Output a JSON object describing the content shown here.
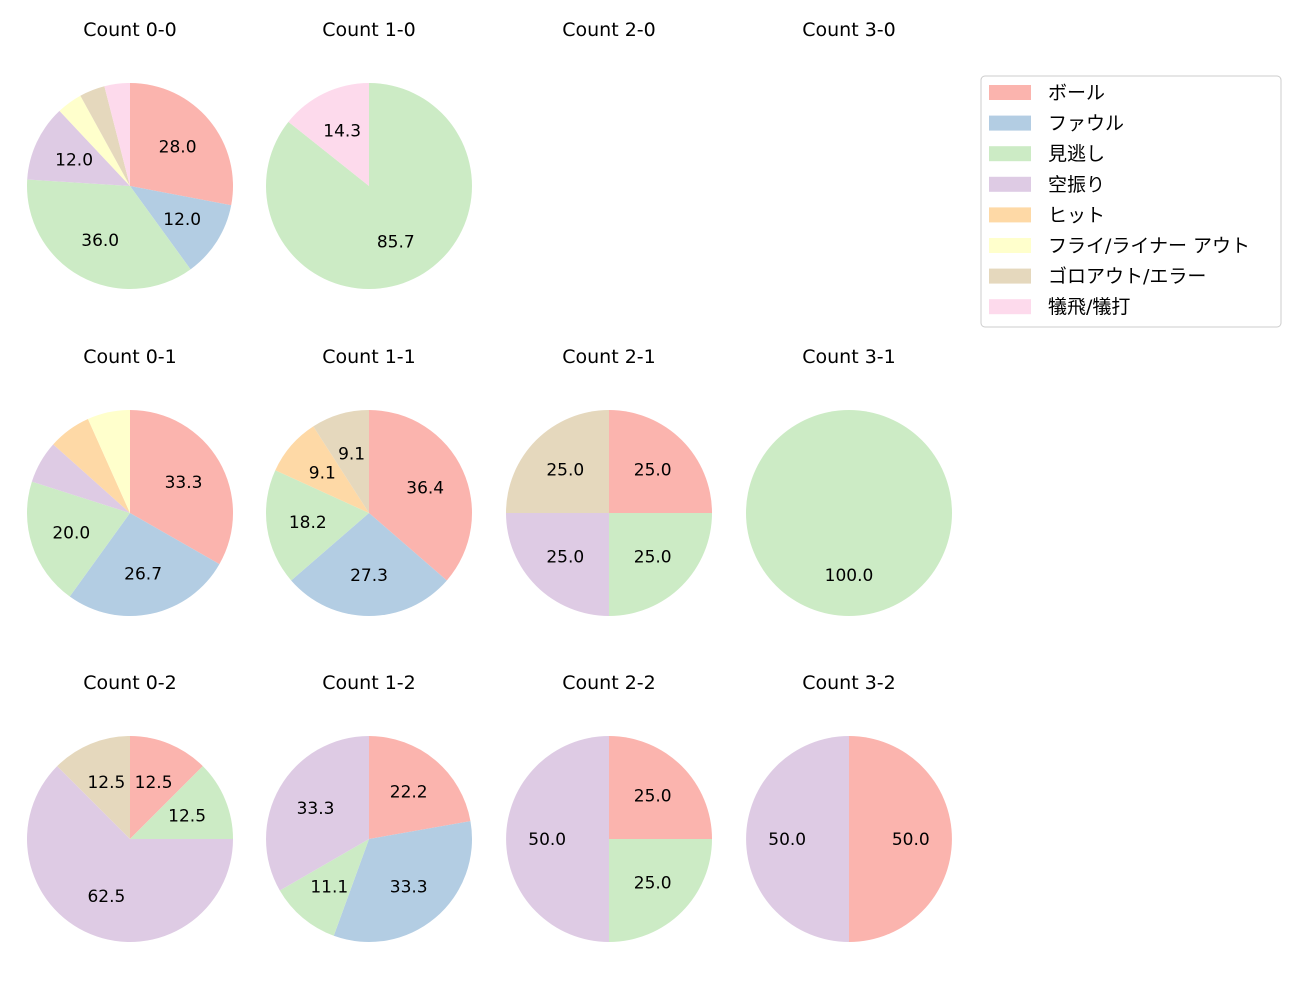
{
  "colors": {
    "ball": "#fbb4ae",
    "foul": "#b3cde3",
    "called": "#ccebc5",
    "swinging": "#decbe4",
    "hit": "#fed9a6",
    "flyout": "#ffffcc",
    "groundout": "#e5d8bd",
    "sacrifice": "#fddaec"
  },
  "chart_data": {
    "type": "pie",
    "legend_position": "top-right",
    "legend": [
      {
        "key": "ball",
        "label": "ボール"
      },
      {
        "key": "foul",
        "label": "ファウル"
      },
      {
        "key": "called",
        "label": "見逃し"
      },
      {
        "key": "swinging",
        "label": "空振り"
      },
      {
        "key": "hit",
        "label": "ヒット"
      },
      {
        "key": "flyout",
        "label": "フライ/ライナー アウト"
      },
      {
        "key": "groundout",
        "label": "ゴロアウト/エラー"
      },
      {
        "key": "sacrifice",
        "label": "犠飛/犠打"
      }
    ],
    "charts": [
      {
        "title": "Count 0-0",
        "slices": [
          {
            "key": "ball",
            "value": 28.0,
            "label": "28.0"
          },
          {
            "key": "foul",
            "value": 12.0,
            "label": "12.0"
          },
          {
            "key": "called",
            "value": 36.0,
            "label": "36.0"
          },
          {
            "key": "swinging",
            "value": 12.0,
            "label": "12.0"
          },
          {
            "key": "flyout",
            "value": 4.0,
            "label": ""
          },
          {
            "key": "groundout",
            "value": 4.0,
            "label": ""
          },
          {
            "key": "sacrifice",
            "value": 4.0,
            "label": ""
          }
        ]
      },
      {
        "title": "Count 1-0",
        "slices": [
          {
            "key": "called",
            "value": 85.7,
            "label": "85.7"
          },
          {
            "key": "sacrifice",
            "value": 14.3,
            "label": "14.3"
          }
        ]
      },
      {
        "title": "Count 2-0",
        "slices": []
      },
      {
        "title": "Count 3-0",
        "slices": []
      },
      {
        "title": "Count 0-1",
        "slices": [
          {
            "key": "ball",
            "value": 33.3,
            "label": "33.3"
          },
          {
            "key": "foul",
            "value": 26.7,
            "label": "26.7"
          },
          {
            "key": "called",
            "value": 20.0,
            "label": "20.0"
          },
          {
            "key": "swinging",
            "value": 6.7,
            "label": ""
          },
          {
            "key": "hit",
            "value": 6.7,
            "label": ""
          },
          {
            "key": "flyout",
            "value": 6.7,
            "label": ""
          }
        ]
      },
      {
        "title": "Count 1-1",
        "slices": [
          {
            "key": "ball",
            "value": 36.4,
            "label": "36.4"
          },
          {
            "key": "foul",
            "value": 27.3,
            "label": "27.3"
          },
          {
            "key": "called",
            "value": 18.2,
            "label": "18.2"
          },
          {
            "key": "hit",
            "value": 9.1,
            "label": "9.1"
          },
          {
            "key": "groundout",
            "value": 9.1,
            "label": "9.1"
          }
        ]
      },
      {
        "title": "Count 2-1",
        "slices": [
          {
            "key": "ball",
            "value": 25.0,
            "label": "25.0"
          },
          {
            "key": "called",
            "value": 25.0,
            "label": "25.0"
          },
          {
            "key": "swinging",
            "value": 25.0,
            "label": "25.0"
          },
          {
            "key": "groundout",
            "value": 25.0,
            "label": "25.0"
          }
        ]
      },
      {
        "title": "Count 3-1",
        "slices": [
          {
            "key": "called",
            "value": 100.0,
            "label": "100.0"
          }
        ]
      },
      {
        "title": "Count 0-2",
        "slices": [
          {
            "key": "ball",
            "value": 12.5,
            "label": "12.5"
          },
          {
            "key": "called",
            "value": 12.5,
            "label": "12.5"
          },
          {
            "key": "swinging",
            "value": 62.5,
            "label": "62.5"
          },
          {
            "key": "groundout",
            "value": 12.5,
            "label": "12.5"
          }
        ]
      },
      {
        "title": "Count 1-2",
        "slices": [
          {
            "key": "ball",
            "value": 22.2,
            "label": "22.2"
          },
          {
            "key": "foul",
            "value": 33.3,
            "label": "33.3"
          },
          {
            "key": "called",
            "value": 11.1,
            "label": "11.1"
          },
          {
            "key": "swinging",
            "value": 33.3,
            "label": "33.3"
          }
        ]
      },
      {
        "title": "Count 2-2",
        "slices": [
          {
            "key": "ball",
            "value": 25.0,
            "label": "25.0"
          },
          {
            "key": "called",
            "value": 25.0,
            "label": "25.0"
          },
          {
            "key": "swinging",
            "value": 50.0,
            "label": "50.0"
          }
        ]
      },
      {
        "title": "Count 3-2",
        "slices": [
          {
            "key": "ball",
            "value": 50.0,
            "label": "50.0"
          },
          {
            "key": "swinging",
            "value": 50.0,
            "label": "50.0"
          }
        ]
      }
    ]
  }
}
